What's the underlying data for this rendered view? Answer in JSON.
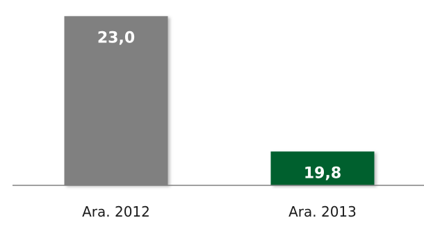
{
  "chart_data": {
    "type": "bar",
    "categories": [
      "Ara. 2012",
      "Ara. 2013"
    ],
    "values": [
      23.0,
      19.8
    ],
    "data_labels": [
      "23,0",
      "19,8"
    ],
    "bar_colors": [
      "#808080",
      "#04602f"
    ],
    "baseline_color": "#808080",
    "ylim": [
      19,
      23.3
    ],
    "grid": false,
    "title": "",
    "xlabel": "",
    "ylabel": ""
  }
}
